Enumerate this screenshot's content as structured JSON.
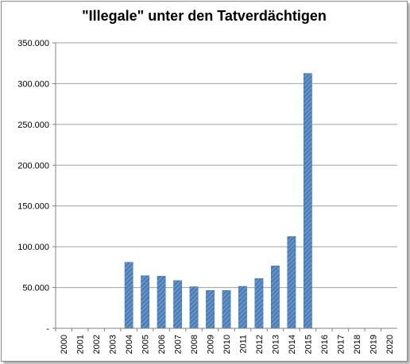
{
  "chart_data": {
    "type": "bar",
    "title": "\"Illegale\" unter den Tatverdächtigen",
    "xlabel": "",
    "ylabel": "",
    "ylim": [
      0,
      350000
    ],
    "yticks": [
      0,
      50000,
      100000,
      150000,
      200000,
      250000,
      300000,
      350000
    ],
    "ytick_labels": [
      "-",
      "50.000",
      "100.000",
      "150.000",
      "200.000",
      "250.000",
      "300.000",
      "350.000"
    ],
    "grid": true,
    "legend": "none",
    "bar_color": "#4a7ebb",
    "categories": [
      "2000",
      "2001",
      "2002",
      "2003",
      "2004",
      "2005",
      "2006",
      "2007",
      "2008",
      "2009",
      "2010",
      "2011",
      "2012",
      "2013",
      "2014",
      "2015",
      "2016",
      "2017",
      "2018",
      "2019",
      "2020"
    ],
    "values": [
      0,
      0,
      0,
      0,
      81000,
      64500,
      64000,
      58500,
      51000,
      46500,
      46500,
      51500,
      61000,
      76500,
      112500,
      312500,
      0,
      0,
      0,
      0,
      0
    ]
  }
}
